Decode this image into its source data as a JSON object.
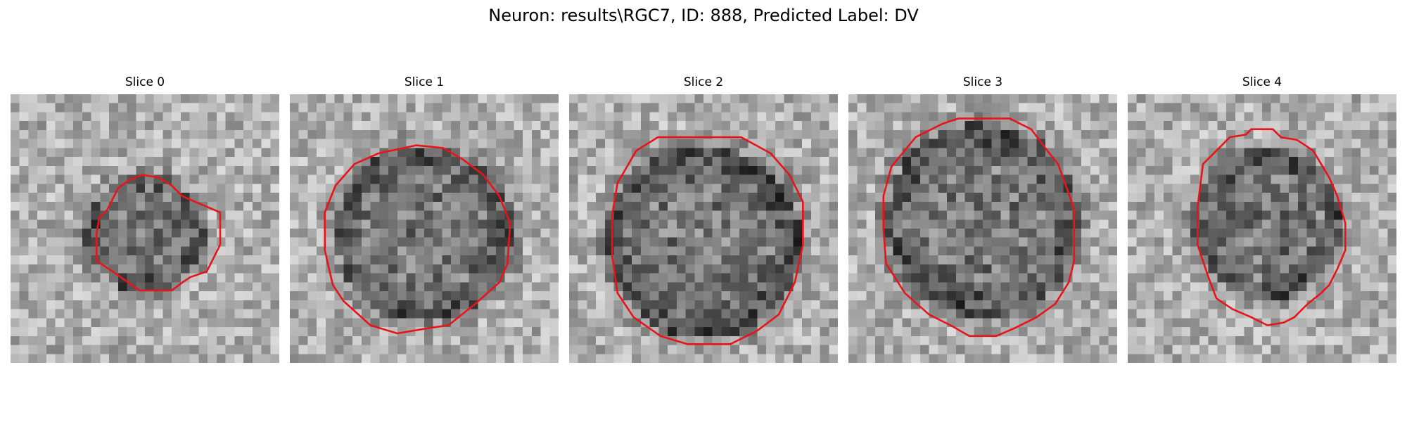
{
  "figure": {
    "title": "Neuron: results\\RGC7, ID: 888, Predicted Label: DV"
  },
  "panels": [
    {
      "title": "Slice 0"
    },
    {
      "title": "Slice 1"
    },
    {
      "title": "Slice 2"
    },
    {
      "title": "Slice 3"
    },
    {
      "title": "Slice 4"
    }
  ],
  "style": {
    "contour_color": "#e8141a",
    "colormap": "grayscale"
  }
}
